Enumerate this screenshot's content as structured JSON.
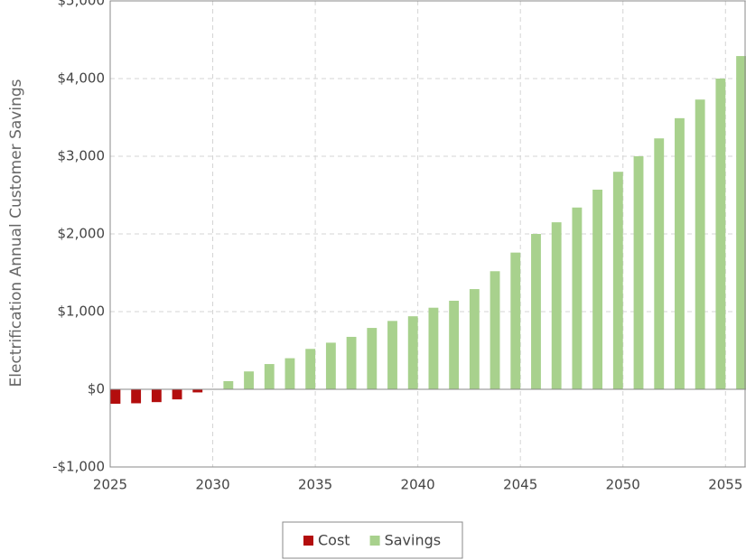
{
  "chart_data": {
    "type": "bar",
    "y_label": "Electrification Annual Customer Savings",
    "x": [
      2025,
      2026,
      2027,
      2028,
      2029,
      2030,
      2031,
      2032,
      2033,
      2034,
      2035,
      2036,
      2037,
      2038,
      2039,
      2040,
      2041,
      2042,
      2043,
      2044,
      2045,
      2046,
      2047,
      2048,
      2049,
      2050,
      2051,
      2052,
      2053,
      2054,
      2055
    ],
    "series": [
      {
        "name": "Cost",
        "color": "#b30d0d",
        "values": [
          -186,
          -180,
          -165,
          -130,
          -40,
          null,
          null,
          null,
          null,
          null,
          null,
          null,
          null,
          null,
          null,
          null,
          null,
          null,
          null,
          null,
          null,
          null,
          null,
          null,
          null,
          null,
          null,
          null,
          null,
          null,
          null
        ]
      },
      {
        "name": "Savings",
        "color": "#a8d18d",
        "values": [
          null,
          null,
          null,
          null,
          null,
          105,
          230,
          325,
          400,
          520,
          600,
          675,
          790,
          880,
          940,
          1050,
          1140,
          1290,
          1520,
          1760,
          2000,
          2150,
          2340,
          2570,
          2800,
          3000,
          3230,
          3490,
          3730,
          4000,
          4290
        ]
      }
    ],
    "xlim": [
      2025,
      2056
    ],
    "xticks": [
      2025,
      2030,
      2035,
      2040,
      2045,
      2050,
      2055
    ],
    "ylim": [
      -1000,
      5000
    ],
    "yticks": [
      {
        "value": -1000,
        "label": "-$1,000"
      },
      {
        "value": 0,
        "label": "$0"
      },
      {
        "value": 1000,
        "label": "$1,000"
      },
      {
        "value": 2000,
        "label": "$2,000"
      },
      {
        "value": 3000,
        "label": "$3,000"
      },
      {
        "value": 4000,
        "label": "$4,000"
      },
      {
        "value": 5000,
        "label": "$5,000"
      }
    ],
    "grid": true,
    "legend": "bottom"
  }
}
